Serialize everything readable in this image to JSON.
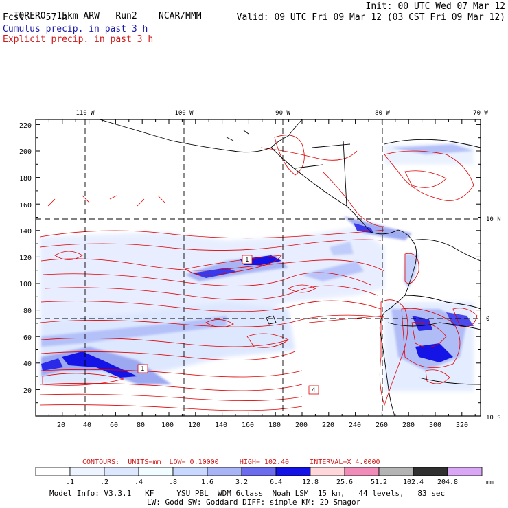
{
  "header": {
    "model": "TORERO",
    "resolution": "15km ARW",
    "run": "Run2",
    "org": "NCAR/MMM",
    "init": "Init: 00 UTC Wed 07 Mar 12",
    "fcst_label": "Fcst:",
    "fcst_value": "57 h",
    "valid": "Valid: 09 UTC Fri 09 Mar 12 (03 CST Fri 09 Mar 12)",
    "field1": "Cumulus precip. in past 3 h",
    "field2": "Explicit precip. in past 3 h"
  },
  "map": {
    "top_lon_labels": [
      "110 W",
      "100 W",
      "90 W",
      "80 W",
      "70 W"
    ],
    "right_lat_labels": [
      "10 N",
      "0",
      "10 S"
    ],
    "y_ticks": [
      "220",
      "200",
      "180",
      "160",
      "140",
      "120",
      "100",
      "80",
      "60",
      "40",
      "20"
    ],
    "x_ticks": [
      "20",
      "40",
      "60",
      "80",
      "100",
      "120",
      "140",
      "160",
      "180",
      "200",
      "220",
      "240",
      "260",
      "280",
      "300",
      "320"
    ],
    "box_labels": [
      "1",
      "1",
      "4"
    ],
    "contour_color": "#e00000",
    "coast_color": "#000000"
  },
  "contours": {
    "label": "CONTOURS:",
    "units": "UNITS=mm",
    "low": "LOW= 0.10000",
    "high": "HIGH= 102.40",
    "interval": "INTERVAL=X 4.0000"
  },
  "colorbar": {
    "labels": [
      ".1",
      ".2",
      ".4",
      ".8",
      "1.6",
      "3.2",
      "6.4",
      "12.8",
      "25.6",
      "51.2",
      "102.4",
      "204.8"
    ],
    "units": "mm",
    "colors": [
      "#ffffff",
      "#eef4ff",
      "#dde8ff",
      "#f0fcff",
      "#c8d8ff",
      "#a8b4f4",
      "#6c6cee",
      "#1414e6",
      "#ffd8dc",
      "#f08cb8",
      "#b4b4b4",
      "#303030",
      "#d8a8f4"
    ]
  },
  "footer": {
    "line1": "Model Info: V3.3.1   KF     YSU PBL  WDM 6class  Noah LSM  15 km,   44 levels,   83 sec",
    "line2": "LW: Godd SW: Goddard DIFF: simple KM: 2D Smagor"
  }
}
